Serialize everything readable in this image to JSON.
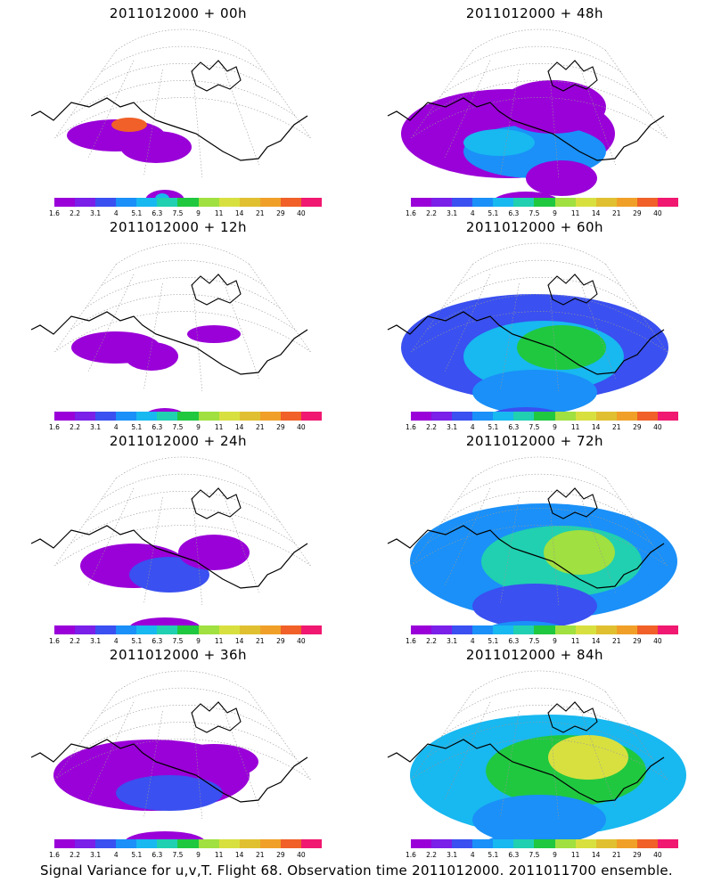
{
  "footer_caption": "Signal Variance for u,v,T. Flight 68. Observation time 2011012000. 2011011700 ensemble.",
  "colorbar": {
    "labels": [
      "1.6",
      "2.2",
      "3.1",
      "4",
      "5.1",
      "6.3",
      "7.5",
      "9",
      "11",
      "14",
      "21",
      "29",
      "40"
    ],
    "colors": [
      "#9a00d8",
      "#7a20e8",
      "#3a50f0",
      "#1a90f8",
      "#18b8f0",
      "#20d0b0",
      "#20c840",
      "#a0e040",
      "#d8e040",
      "#e0c030",
      "#f0a028",
      "#f06028",
      "#f01870"
    ]
  },
  "chart_data": {
    "type": "heatmap",
    "title": "",
    "panels": [
      {
        "title": "2011012000 + 00h",
        "lead_hours": 0
      },
      {
        "title": "2011012000 + 48h",
        "lead_hours": 48
      },
      {
        "title": "2011012000 + 12h",
        "lead_hours": 12
      },
      {
        "title": "2011012000 + 60h",
        "lead_hours": 60
      },
      {
        "title": "2011012000 + 24h",
        "lead_hours": 24
      },
      {
        "title": "2011012000 + 72h",
        "lead_hours": 72
      },
      {
        "title": "2011012000 + 36h",
        "lead_hours": 36
      },
      {
        "title": "2011012000 + 84h",
        "lead_hours": 84
      }
    ],
    "colorbar_levels": [
      1.6,
      2.2,
      3.1,
      4,
      5.1,
      6.3,
      7.5,
      9,
      11,
      14,
      21,
      29,
      40
    ],
    "grid": true,
    "legend_position": "below each panel"
  }
}
